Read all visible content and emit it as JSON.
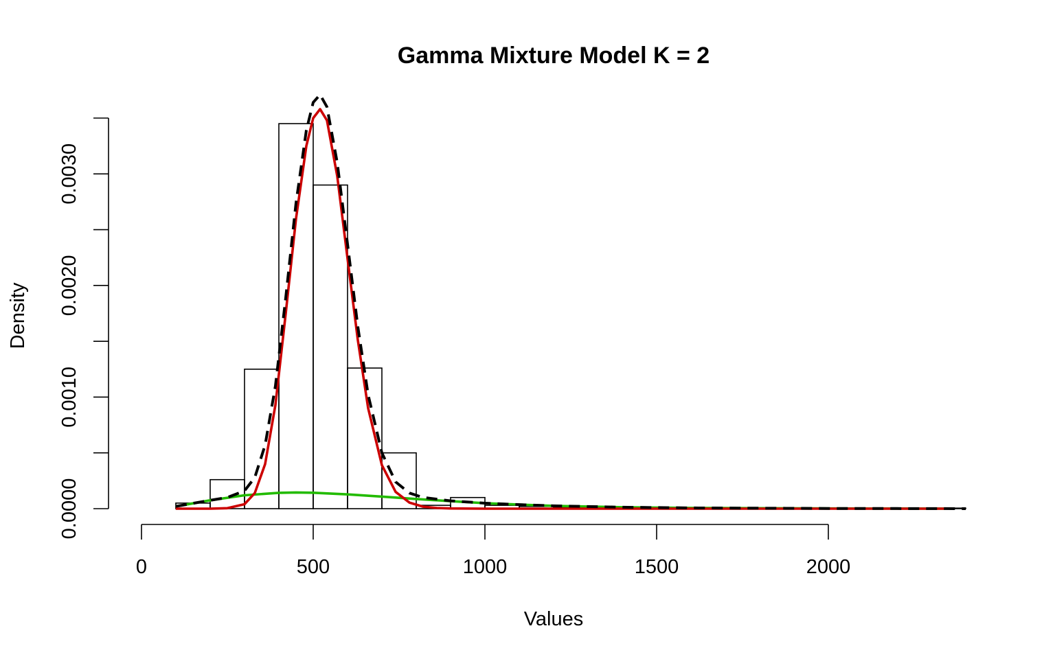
{
  "chart_data": {
    "type": "histogram",
    "title": "Gamma Mixture Model K = 2",
    "xlabel": "Values",
    "ylabel": "Density",
    "xlim": [
      0,
      2400
    ],
    "ylim": [
      0,
      0.0035
    ],
    "x_ticks": [
      "0",
      "500",
      "1000",
      "1500",
      "2000"
    ],
    "y_ticks": [
      "0.0000",
      "0.0010",
      "0.0020",
      "0.0030"
    ],
    "y_tick_values": [
      0,
      0.0005,
      0.001,
      0.0015,
      0.002,
      0.0025,
      0.003,
      0.0035
    ],
    "bins": [
      {
        "x0": 100,
        "x1": 200,
        "density": 5e-05
      },
      {
        "x0": 200,
        "x1": 300,
        "density": 0.00026
      },
      {
        "x0": 300,
        "x1": 400,
        "density": 0.00125
      },
      {
        "x0": 400,
        "x1": 500,
        "density": 0.00345
      },
      {
        "x0": 500,
        "x1": 600,
        "density": 0.0029
      },
      {
        "x0": 600,
        "x1": 700,
        "density": 0.00126
      },
      {
        "x0": 700,
        "x1": 800,
        "density": 0.0005
      },
      {
        "x0": 800,
        "x1": 900,
        "density": 3e-05
      },
      {
        "x0": 900,
        "x1": 1000,
        "density": 0.0001
      },
      {
        "x0": 1000,
        "x1": 1100,
        "density": 3e-05
      },
      {
        "x0": 1100,
        "x1": 1200,
        "density": 2e-05
      },
      {
        "x0": 1200,
        "x1": 1300,
        "density": 1e-05
      },
      {
        "x0": 1300,
        "x1": 1400,
        "density": 1e-05
      },
      {
        "x0": 1400,
        "x1": 1500,
        "density": 1e-05
      },
      {
        "x0": 1500,
        "x1": 1600,
        "density": 5e-06
      },
      {
        "x0": 1600,
        "x1": 1700,
        "density": 5e-06
      },
      {
        "x0": 1700,
        "x1": 1800,
        "density": 5e-06
      },
      {
        "x0": 1800,
        "x1": 1900,
        "density": 5e-06
      },
      {
        "x0": 1900,
        "x1": 2000,
        "density": 5e-06
      },
      {
        "x0": 2000,
        "x1": 2100,
        "density": 5e-06
      },
      {
        "x0": 2100,
        "x1": 2200,
        "density": 5e-06
      },
      {
        "x0": 2200,
        "x1": 2300,
        "density": 5e-06
      },
      {
        "x0": 2300,
        "x1": 2400,
        "density": 5e-06
      }
    ],
    "series": [
      {
        "color": "#cc0000",
        "style": "solid",
        "x": [
          100,
          200,
          250,
          300,
          330,
          360,
          390,
          420,
          450,
          480,
          500,
          520,
          540,
          570,
          600,
          630,
          660,
          700,
          740,
          780,
          820,
          860,
          900,
          1000,
          1200,
          1500,
          2000,
          2340
        ],
        "y": [
          0,
          0,
          4e-06,
          4e-05,
          0.00014,
          0.0004,
          0.00093,
          0.00175,
          0.0026,
          0.00325,
          0.0035,
          0.00358,
          0.00348,
          0.00298,
          0.00224,
          0.00151,
          0.0009,
          0.00039,
          0.00015,
          5.5e-05,
          1.8e-05,
          6e-06,
          2e-06,
          0,
          0,
          0,
          0,
          0
        ]
      },
      {
        "color": "#22bb00",
        "style": "solid",
        "x": [
          100,
          200,
          300,
          400,
          450,
          500,
          600,
          700,
          800,
          900,
          1000,
          1100,
          1200,
          1400,
          1600,
          1800,
          2000,
          2200,
          2340
        ],
        "y": [
          2e-05,
          7.5e-05,
          0.00012,
          0.000142,
          0.000145,
          0.000143,
          0.000128,
          0.000108,
          8.7e-05,
          6.7e-05,
          4.9e-05,
          3.6e-05,
          2.5e-05,
          1.3e-05,
          7e-06,
          4e-06,
          2e-06,
          1e-06,
          5e-07
        ]
      },
      {
        "color": "#000000",
        "style": "dashed",
        "x": [
          100,
          200,
          250,
          300,
          330,
          360,
          390,
          420,
          450,
          480,
          500,
          520,
          540,
          570,
          600,
          630,
          660,
          700,
          740,
          780,
          820,
          860,
          900,
          1000,
          1100,
          1200,
          1400,
          1600,
          1800,
          2000,
          2200,
          2400
        ],
        "y": [
          2e-05,
          7.5e-05,
          0.0001,
          0.00016,
          0.00028,
          0.00057,
          0.0011,
          0.00189,
          0.00274,
          0.00339,
          0.00364,
          0.00371,
          0.0036,
          0.0031,
          0.00237,
          0.00163,
          0.00102,
          0.0005,
          0.00024,
          0.00014,
          0.0001,
          8.5e-05,
          7e-05,
          4.9e-05,
          3.6e-05,
          2.5e-05,
          1.3e-05,
          7e-06,
          4e-06,
          2e-06,
          1e-06,
          0
        ]
      }
    ]
  }
}
